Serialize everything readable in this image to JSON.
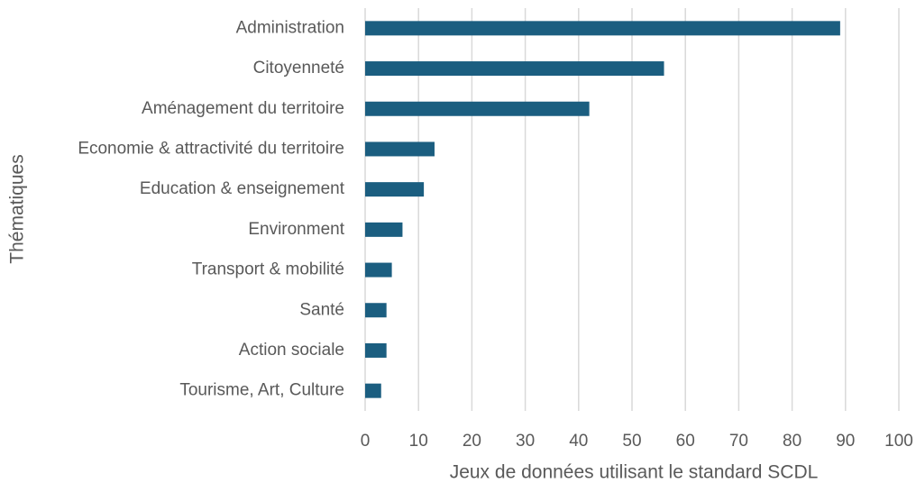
{
  "chart_data": {
    "type": "bar",
    "orientation": "horizontal",
    "x_label": "Jeux de données utilisant le standard SCDL",
    "y_label": "Thématiques",
    "categories": [
      "Administration",
      "Citoyenneté",
      "Aménagement du territoire",
      "Economie & attractivité du territoire",
      "Education & enseignement",
      "Environment",
      "Transport & mobilité",
      "Santé",
      "Action sociale",
      "Tourisme, Art, Culture"
    ],
    "values": [
      89,
      56,
      42,
      13,
      11,
      7,
      5,
      4,
      4,
      3
    ],
    "color": "#1b5e80",
    "xlim": [
      0,
      100
    ],
    "xticks": [
      0,
      10,
      20,
      30,
      40,
      50,
      60,
      70,
      80,
      90,
      100
    ],
    "grid": true
  }
}
